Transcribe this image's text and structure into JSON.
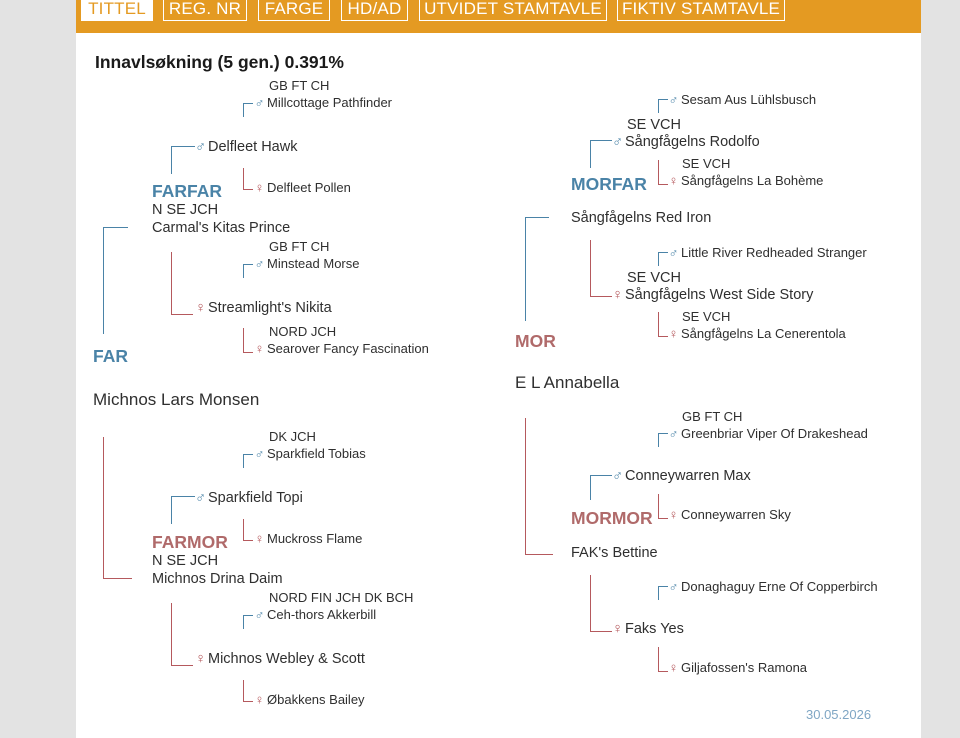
{
  "tabs": [
    {
      "label": "TITTEL",
      "active": true
    },
    {
      "label": "REG. NR",
      "active": false
    },
    {
      "label": "FARGE",
      "active": false
    },
    {
      "label": "HD/AD",
      "active": false
    },
    {
      "label": "UTVIDET STAMTAVLE",
      "active": false
    },
    {
      "label": "FIKTIV STAMTAVLE",
      "active": false
    }
  ],
  "inbreeding": "Innavlsøkning (5 gen.) 0.391%",
  "symbols": {
    "male": "♂",
    "female": "♀"
  },
  "colors": {
    "header": "#e49a22",
    "male": "#4a83a7",
    "female": "#b5595d"
  },
  "far": {
    "label": "FAR",
    "name": "Michnos Lars Monsen",
    "farfar": {
      "label": "FARFAR",
      "title": "N SE JCH",
      "name": "Carmal's Kitas Prince",
      "sire": {
        "name": "Delfleet Hawk",
        "sire": {
          "title": "GB FT CH",
          "name": "Millcottage Pathfinder"
        },
        "dam": {
          "title": "",
          "name": "Delfleet Pollen"
        }
      },
      "dam": {
        "name": "Streamlight's Nikita",
        "sire": {
          "title": "GB FT CH",
          "name": "Minstead Morse"
        },
        "dam": {
          "title": "NORD JCH",
          "name": "Searover Fancy Fascination"
        }
      }
    },
    "farmor": {
      "label": "FARMOR",
      "title": "N SE JCH",
      "name": "Michnos Drina Daim",
      "sire": {
        "name": "Sparkfield Topi",
        "sire": {
          "title": "DK JCH",
          "name": "Sparkfield Tobias"
        },
        "dam": {
          "title": "",
          "name": "Muckross Flame"
        }
      },
      "dam": {
        "name": "Michnos Webley & Scott",
        "sire": {
          "title": "NORD FIN JCH DK BCH",
          "name": "Ceh-thors Akkerbill"
        },
        "dam": {
          "title": "",
          "name": "Øbakkens Bailey"
        }
      }
    }
  },
  "mor": {
    "label": "MOR",
    "name": "E L Annabella",
    "morfar": {
      "label": "MORFAR",
      "title": "",
      "name": "Sångfågelns Red Iron",
      "sire": {
        "title": "SE VCH",
        "name": "Sångfågelns Rodolfo",
        "sire": {
          "title": "",
          "name": "Sesam Aus Lühlsbusch"
        },
        "dam": {
          "title": "SE VCH",
          "name": "Sångfågelns La Bohème"
        }
      },
      "dam": {
        "title": "SE VCH",
        "name": "Sångfågelns West Side Story",
        "sire": {
          "title": "",
          "name": "Little River Redheaded Stranger"
        },
        "dam": {
          "title": "SE VCH",
          "name": "Sångfågelns La Cenerentola"
        }
      }
    },
    "mormor": {
      "label": "MORMOR",
      "title": "",
      "name": "FAK's Bettine",
      "sire": {
        "title": "",
        "name": "Conneywarren Max",
        "sire": {
          "title": "GB FT CH",
          "name": "Greenbriar Viper Of Drakeshead"
        },
        "dam": {
          "title": "",
          "name": "Conneywarren Sky"
        }
      },
      "dam": {
        "title": "",
        "name": "Faks Yes",
        "sire": {
          "title": "",
          "name": "Donaghaguy Erne Of Copperbirch"
        },
        "dam": {
          "title": "",
          "name": "Giljafossen's Ramona"
        }
      }
    }
  },
  "date": "30.05.2026"
}
